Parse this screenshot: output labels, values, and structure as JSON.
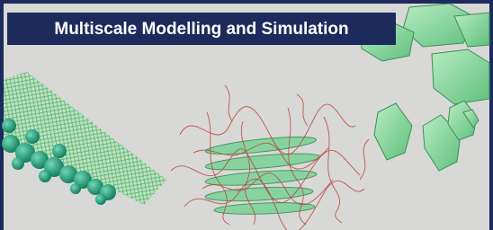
{
  "header": {
    "title": "Multiscale Modelling and Simulation"
  }
}
